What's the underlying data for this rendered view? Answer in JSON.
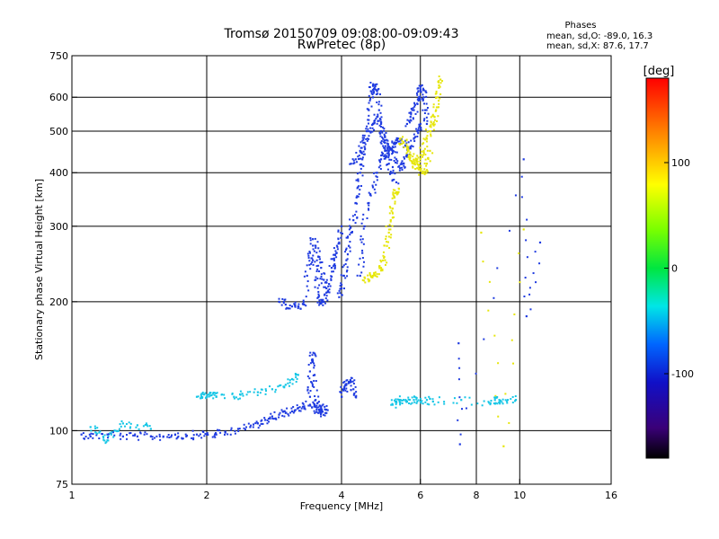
{
  "chart_data": {
    "type": "scatter",
    "title": "Tromsø 20150709 09:08:00-09:09:43",
    "subtitle": "RwPretec (8p)",
    "xlabel": "Frequency [MHz]",
    "ylabel": "Stationary phase Virtual Height [km]",
    "x_scale": "log",
    "y_scale": "log",
    "xlim": [
      1,
      16
    ],
    "ylim": [
      75,
      750
    ],
    "x_ticks": [
      1,
      2,
      4,
      6,
      8,
      10,
      16
    ],
    "x_tick_labels": [
      "1",
      "2",
      "4",
      "6",
      "8",
      "10",
      "16"
    ],
    "x_grid": [
      2,
      4,
      6,
      8,
      10
    ],
    "y_ticks": [
      75,
      100,
      200,
      300,
      400,
      500,
      600,
      750
    ],
    "y_tick_labels": [
      "75",
      "100",
      "200",
      "300",
      "400",
      "500",
      "600",
      "750"
    ],
    "y_grid": [
      100,
      200,
      300,
      400,
      500,
      600
    ],
    "grid": true,
    "legend": {
      "title": "Phases",
      "lines": [
        "mean, sd,O: -89.0, 16.3",
        "mean, sd,X:  87.6, 17.7"
      ],
      "placement": "top-right"
    },
    "colorbar": {
      "label": "[deg]",
      "range": [
        -180,
        180
      ],
      "ticks": [
        100,
        0,
        -100
      ],
      "tick_labels": [
        "100",
        "0",
        "-100"
      ]
    },
    "series": [
      {
        "component": "O",
        "color": "#1f3be0",
        "traces": [
          {
            "x": [
              1.05,
              1.1,
              1.2,
              1.3,
              1.4,
              1.5,
              1.6,
              1.7,
              1.8,
              1.9,
              2.0,
              2.1,
              2.2,
              2.35,
              2.5,
              2.6,
              2.7,
              2.8,
              2.9,
              3.0,
              3.1,
              3.2,
              3.3,
              3.4,
              3.5,
              3.6,
              3.7
            ],
            "y": [
              98,
              97,
              98,
              97,
              97,
              97,
              97,
              98,
              97,
              98,
              98,
              98,
              99,
              101,
              102,
              104,
              106,
              108,
              109,
              110,
              111,
              113,
              114,
              115,
              114,
              113,
              112
            ]
          },
          {
            "x": [
              3.4,
              3.42,
              3.44,
              3.46,
              3.48,
              3.5,
              3.52,
              3.55,
              3.6,
              3.7
            ],
            "y": [
              120,
              130,
              145,
              152,
              135,
              118,
              112,
              110,
              110,
              110
            ]
          },
          {
            "x": [
              2.9,
              3.0,
              3.1,
              3.2,
              3.3,
              3.35,
              3.4,
              3.45,
              3.5,
              3.55,
              3.6,
              3.65,
              3.7,
              3.75,
              3.8,
              3.85,
              3.9,
              3.95,
              4.0
            ],
            "y": [
              200,
              197,
              195,
              195,
              197,
              230,
              260,
              250,
              225,
              205,
              198,
              200,
              210,
              220,
              240,
              250,
              260,
              275,
              300
            ]
          },
          {
            "x": [
              3.45,
              3.5,
              3.55,
              3.6,
              3.65,
              3.7
            ],
            "y": [
              280,
              270,
              255,
              240,
              225,
              215
            ]
          },
          {
            "x": [
              3.95,
              4.0,
              4.05,
              4.1,
              4.15,
              4.2,
              4.25,
              4.3,
              4.35,
              4.4,
              4.45,
              4.5,
              4.55,
              4.6,
              4.65,
              4.7
            ],
            "y": [
              205,
              215,
              230,
              250,
              270,
              290,
              310,
              340,
              370,
              400,
              430,
              460,
              500,
              560,
              620,
              640
            ]
          },
          {
            "x": [
              4.4,
              4.45,
              4.5,
              4.6,
              4.7,
              4.8,
              4.9,
              5.0,
              5.1,
              5.2,
              5.3
            ],
            "y": [
              230,
              260,
              300,
              340,
              370,
              400,
              430,
              450,
              420,
              400,
              380
            ]
          },
          {
            "x": [
              4.7,
              4.75,
              4.8,
              4.85,
              4.9,
              4.95,
              5.0,
              5.1,
              5.2,
              5.3,
              5.4,
              5.5,
              5.6,
              5.7,
              5.8,
              5.9,
              6.0
            ],
            "y": [
              600,
              640,
              620,
              560,
              520,
              480,
              470,
              460,
              450,
              430,
              410,
              420,
              440,
              460,
              480,
              500,
              520
            ]
          },
          {
            "x": [
              4.2,
              4.3,
              4.4,
              4.5,
              4.6,
              4.7,
              4.8,
              4.9,
              5.0,
              5.1
            ],
            "y": [
              420,
              430,
              450,
              470,
              500,
              520,
              540,
              500,
              470,
              440
            ]
          },
          {
            "x": [
              4.0,
              4.05,
              4.1,
              4.15,
              4.2,
              4.25,
              4.3
            ],
            "y": [
              120,
              125,
              128,
              130,
              130,
              125,
              120
            ]
          },
          {
            "x": [
              5.6,
              5.7,
              5.8,
              5.9,
              5.95,
              6.0,
              6.05,
              6.1,
              6.15,
              6.2
            ],
            "y": [
              520,
              540,
              560,
              580,
              600,
              620,
              640,
              600,
              560,
              520
            ]
          },
          {
            "x": [
              5.0,
              5.1,
              5.2,
              5.3,
              5.4,
              5.5,
              5.6
            ],
            "y": [
              440,
              450,
              460,
              470,
              480,
              470,
              460
            ]
          },
          {
            "x": [
              7.3,
              7.35,
              10.2,
              10.35,
              11.1
            ],
            "y": [
              160,
              93,
              430,
              185,
              275
            ]
          }
        ]
      },
      {
        "component": "X",
        "color": "#e6e60a",
        "traces": [
          {
            "x": [
              4.5,
              4.6,
              4.7,
              4.8,
              4.9,
              5.0,
              5.05,
              5.1,
              5.15,
              5.2,
              5.25,
              5.3,
              5.35
            ],
            "y": [
              228,
              225,
              230,
              232,
              240,
              250,
              270,
              290,
              310,
              330,
              350,
              360,
              360
            ]
          },
          {
            "x": [
              5.4,
              5.5,
              5.6,
              5.7,
              5.8,
              5.9,
              6.0,
              6.1,
              6.2,
              6.3,
              6.4,
              6.45,
              6.5,
              6.55,
              6.6,
              6.65
            ],
            "y": [
              480,
              470,
              460,
              440,
              420,
              430,
              440,
              450,
              480,
              500,
              520,
              540,
              560,
              600,
              640,
              660
            ]
          },
          {
            "x": [
              5.7,
              5.8,
              5.9,
              6.0,
              6.1,
              6.2,
              6.3
            ],
            "y": [
              440,
              420,
              410,
              405,
              400,
              420,
              450
            ]
          },
          {
            "x": [
              8.2,
              9.2,
              10.2
            ],
            "y": [
              290,
              92,
              295
            ]
          }
        ]
      },
      {
        "component": "mixed",
        "color": "#16c6e6",
        "traces": [
          {
            "x": [
              1.1,
              1.15,
              1.2,
              1.25,
              1.3,
              1.4,
              1.5
            ],
            "y": [
              102,
              99,
              95,
              100,
              104,
              103,
              101
            ]
          },
          {
            "x": [
              1.9,
              1.95,
              2.0,
              2.05,
              2.1,
              2.3,
              2.4,
              2.6,
              2.8,
              3.0,
              3.1,
              3.2
            ],
            "y": [
              120,
              122,
              120,
              121,
              120,
              120,
              122,
              123,
              125,
              128,
              132,
              135
            ]
          },
          {
            "x": [
              5.2,
              5.3,
              5.4,
              5.5,
              5.6,
              5.8,
              6.0,
              6.2,
              6.4,
              7.4,
              8.6,
              8.8,
              9.0,
              9.4,
              9.8
            ],
            "y": [
              115,
              117,
              118,
              118,
              117,
              118,
              117,
              118,
              117,
              118,
              116,
              118,
              118,
              118,
              118
            ]
          }
        ]
      }
    ]
  }
}
